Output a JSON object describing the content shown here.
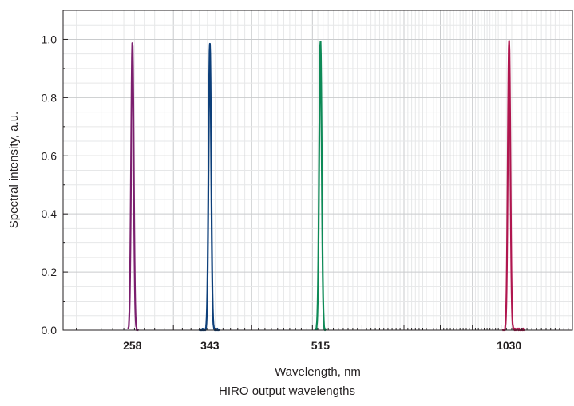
{
  "chart_data": {
    "type": "line",
    "title": "",
    "xlabel": "Wavelength, nm",
    "ylabel": "Spectral intensity, a.u.",
    "x_scale": "log",
    "xlim": [
      200,
      1300
    ],
    "ylim": [
      0,
      1.1
    ],
    "grid": true,
    "x_tick_values": [
      258,
      343,
      515,
      1030
    ],
    "x_tick_labels": [
      "258",
      "343",
      "515",
      "1030"
    ],
    "y_tick_values": [
      0.0,
      0.2,
      0.4,
      0.6,
      0.8,
      1.0
    ],
    "y_tick_labels": [
      "0.0",
      "0.2",
      "0.4",
      "0.6",
      "0.8",
      "1.0"
    ],
    "series": [
      {
        "color": "#7b1f6e",
        "peak_x": 258,
        "peak_y": 0.99,
        "base_range": [
          254,
          264
        ]
      },
      {
        "color": "#0d3f7a",
        "peak_x": 343,
        "peak_y": 0.985,
        "base_range": [
          330,
          355
        ]
      },
      {
        "color": "#0e8a57",
        "peak_x": 515,
        "peak_y": 0.995,
        "base_range": [
          505,
          525
        ]
      },
      {
        "color": "#b0164f",
        "peak_x": 1030,
        "peak_y": 0.995,
        "base_range": [
          1005,
          1090
        ]
      }
    ]
  },
  "caption": "HIRO output wavelengths"
}
